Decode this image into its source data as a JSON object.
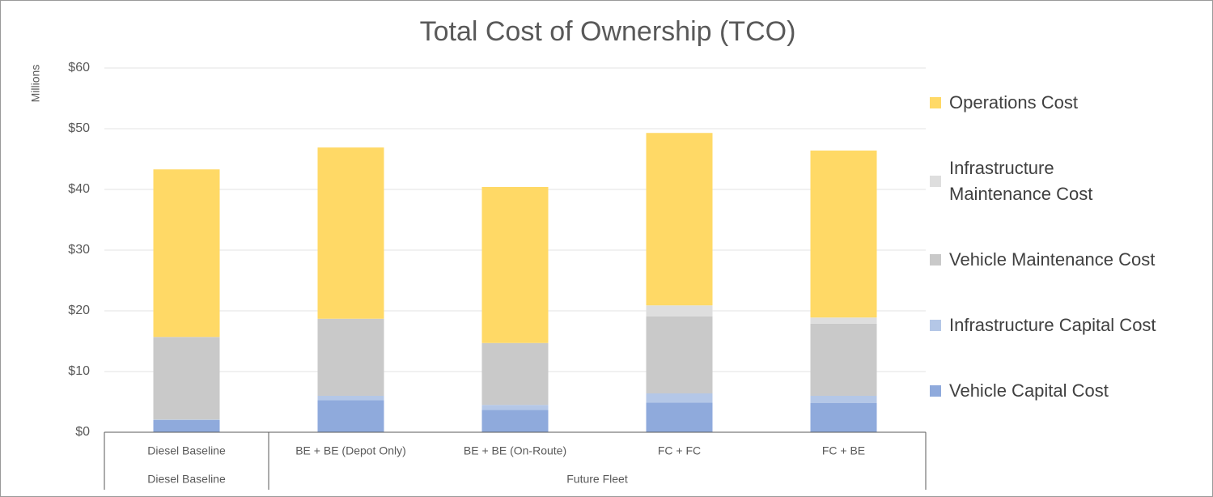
{
  "chart_data": {
    "type": "stacked_bar",
    "title": "Total Cost of Ownership (TCO)",
    "y_axis_label": "Millions",
    "categories": [
      "Diesel Baseline",
      "BE + BE (Depot Only)",
      "BE + BE (On-Route)",
      "FC + FC",
      "FC + BE"
    ],
    "category_groups": [
      {
        "name": "Diesel Baseline",
        "count": 1
      },
      {
        "name": "Future Fleet",
        "count": 4
      }
    ],
    "series": [
      {
        "name": "Vehicle Capital Cost",
        "color": "#8faadc",
        "values": [
          2.0,
          5.3,
          3.7,
          4.9,
          4.8
        ]
      },
      {
        "name": "Infrastructure Capital Cost",
        "color": "#b4c7e7",
        "values": [
          0.1,
          0.7,
          0.8,
          1.5,
          1.2
        ]
      },
      {
        "name": "Vehicle Maintenance Cost",
        "color": "#c9c9c9",
        "values": [
          13.6,
          12.7,
          10.2,
          12.7,
          11.9
        ]
      },
      {
        "name": "Infrastructure Maintenance Cost",
        "color": "#dedede",
        "values": [
          0,
          0,
          0,
          1.8,
          1.0
        ]
      },
      {
        "name": "Operations Cost",
        "color": "#ffd966",
        "values": [
          27.6,
          28.2,
          25.7,
          28.4,
          27.5
        ]
      }
    ],
    "ylim": [
      0,
      60
    ],
    "yticks": [
      {
        "value": 0,
        "label": "$0"
      },
      {
        "value": 10,
        "label": "$10"
      },
      {
        "value": 20,
        "label": "$20"
      },
      {
        "value": 30,
        "label": "$30"
      },
      {
        "value": 40,
        "label": "$40"
      },
      {
        "value": 50,
        "label": "$50"
      },
      {
        "value": 60,
        "label": "$60"
      }
    ],
    "grid": true,
    "legend": "right"
  }
}
